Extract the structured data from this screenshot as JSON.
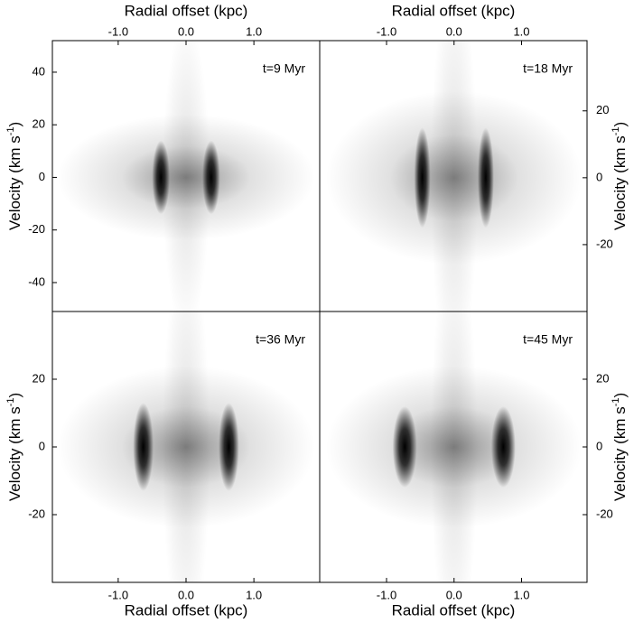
{
  "chart_data": [
    {
      "type": "heatmap",
      "label": "t=9 Myr",
      "xlabel": "Radial offset (kpc)",
      "ylabel": {
        "text": "Velocity (km s",
        "sup": "-1",
        "end": ")"
      },
      "xlim": [
        -1.97,
        1.97
      ],
      "ylim": [
        -51,
        52
      ],
      "xticks": [
        {
          "value": -1,
          "label": "-1.0"
        },
        {
          "value": 0,
          "label": "0.0"
        },
        {
          "value": 1,
          "label": "1.0"
        }
      ],
      "yticks": [
        -40,
        -20,
        0,
        20,
        40
      ]
    },
    {
      "type": "heatmap",
      "label": "t=18 Myr",
      "xlabel": "Radial offset (kpc)",
      "ylabel": {
        "text": "Velocity (km s",
        "sup": "-1",
        "end": ")"
      },
      "xlim": [
        -1.99,
        1.97
      ],
      "ylim": [
        -40,
        41
      ],
      "xticks": [
        {
          "value": -1,
          "label": "-1.0"
        },
        {
          "value": 0,
          "label": "0.0"
        },
        {
          "value": 1,
          "label": "1.0"
        }
      ],
      "yticks": [
        -20,
        0,
        20
      ]
    },
    {
      "type": "heatmap",
      "label": "t=36 Myr",
      "xlabel": "Radial offset (kpc)",
      "ylabel": {
        "text": "Velocity (km s",
        "sup": "-1",
        "end": ")"
      },
      "xlim": [
        -1.97,
        1.97
      ],
      "ylim": [
        -40,
        40
      ],
      "xticks": [
        {
          "value": -1,
          "label": "-1.0"
        },
        {
          "value": 0,
          "label": "0.0"
        },
        {
          "value": 1,
          "label": "1.0"
        }
      ],
      "yticks": [
        -20,
        0,
        20
      ]
    },
    {
      "type": "heatmap",
      "label": "t=45 Myr",
      "xlabel": "Radial offset (kpc)",
      "ylabel": {
        "text": "Velocity (km s",
        "sup": "-1",
        "end": ")"
      },
      "xlim": [
        -1.99,
        1.97
      ],
      "ylim": [
        -40,
        40
      ],
      "xticks": [
        {
          "value": -1,
          "label": "-1.0"
        },
        {
          "value": 0,
          "label": "0.0"
        },
        {
          "value": 1,
          "label": "1.0"
        }
      ],
      "yticks": [
        -20,
        0,
        20
      ]
    }
  ]
}
